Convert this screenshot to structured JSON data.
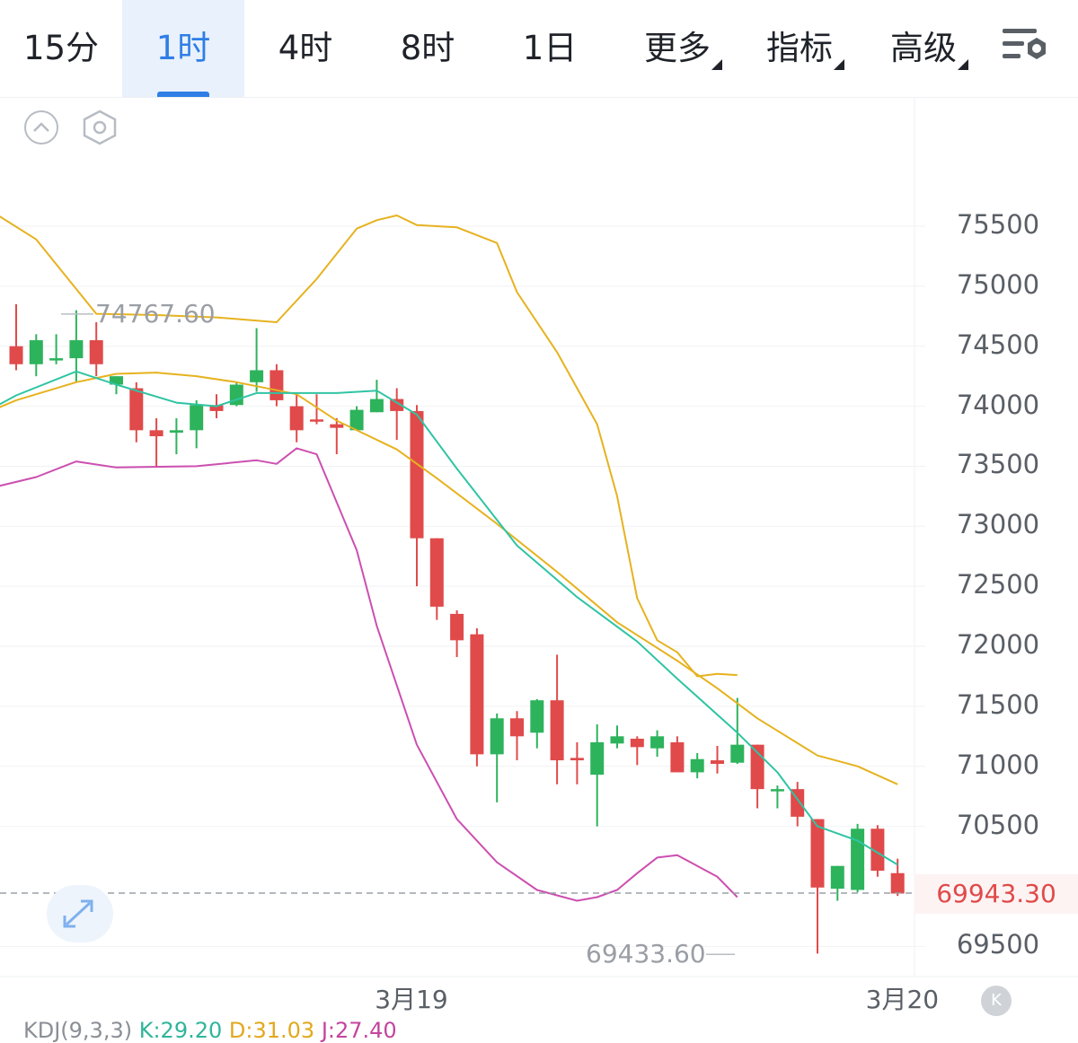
{
  "tabs": [
    {
      "label": "15分",
      "active": false,
      "dropdown": false
    },
    {
      "label": "1时",
      "active": true,
      "dropdown": false
    },
    {
      "label": "4时",
      "active": false,
      "dropdown": false
    },
    {
      "label": "8时",
      "active": false,
      "dropdown": false
    },
    {
      "label": "1日",
      "active": false,
      "dropdown": false
    },
    {
      "label": "更多",
      "active": false,
      "dropdown": true
    },
    {
      "label": "指标",
      "active": false,
      "dropdown": true
    },
    {
      "label": "高级",
      "active": false,
      "dropdown": true
    }
  ],
  "icons": {
    "settings": "chart-settings-icon",
    "collapse": "chevron-up-icon",
    "indicator": "hexagon-settings-icon",
    "expand": "expand-arrows-icon",
    "back": "back-to-latest-icon"
  },
  "colors": {
    "accent": "#2f7ee6",
    "up": "#2db35c",
    "down": "#e04a4a",
    "ma_fast": "#2fc4a3",
    "ma_slow": "#e6b21f",
    "boll_upper": "#e6b21f",
    "boll_lower": "#cc4fb0"
  },
  "back_label": "K",
  "kdj": {
    "title": "KDJ(9,3,3)",
    "k": "K:29.20",
    "d": "D:31.03",
    "j": "J:27.40"
  },
  "chart_data": {
    "type": "candlestick",
    "y_ticks": [
      "75500",
      "75000",
      "74500",
      "74000",
      "73500",
      "73000",
      "72500",
      "72000",
      "71500",
      "71000",
      "70500",
      "69500"
    ],
    "y_range": [
      69400,
      76200
    ],
    "x_ticks": [
      {
        "label": "3月19",
        "index": 19.7
      },
      {
        "label": "3月20",
        "index": 44.2
      }
    ],
    "current_price": 69943.3,
    "current_price_label": "69943.30",
    "max_label": "74767.60",
    "min_label": "69433.60",
    "candles": [
      [
        74500,
        74350,
        74850,
        74300
      ],
      [
        74350,
        74550,
        74600,
        74250
      ],
      [
        74400,
        74400,
        74600,
        74350
      ],
      [
        74400,
        74550,
        74800,
        74200
      ],
      [
        74550,
        74350,
        74700,
        74250
      ],
      [
        74180,
        74250,
        74250,
        74100
      ],
      [
        74150,
        73800,
        74200,
        73700
      ],
      [
        73800,
        73750,
        73900,
        73500
      ],
      [
        73780,
        73800,
        73900,
        73600
      ],
      [
        73800,
        74010,
        74050,
        73650
      ],
      [
        74010,
        73960,
        74100,
        73900
      ],
      [
        74010,
        74180,
        74200,
        74000
      ],
      [
        74200,
        74300,
        74650,
        74120
      ],
      [
        74300,
        74050,
        74350,
        74000
      ],
      [
        74000,
        73800,
        74100,
        73700
      ],
      [
        73890,
        73880,
        74100,
        73850
      ],
      [
        73850,
        73820,
        73900,
        73600
      ],
      [
        73800,
        73970,
        74000,
        73800
      ],
      [
        73950,
        74060,
        74220,
        73950
      ],
      [
        74060,
        73960,
        74150,
        73720
      ],
      [
        73960,
        72900,
        74010,
        72500
      ],
      [
        72900,
        72330,
        72900,
        72220
      ],
      [
        72270,
        72050,
        72300,
        71910
      ],
      [
        72100,
        71100,
        72150,
        71000
      ],
      [
        71100,
        71400,
        71440,
        70700
      ],
      [
        71400,
        71250,
        71460,
        71050
      ],
      [
        71280,
        71550,
        71560,
        71150
      ],
      [
        71550,
        71050,
        71930,
        70850
      ],
      [
        71070,
        71050,
        71200,
        70850
      ],
      [
        70930,
        71200,
        71350,
        70500
      ],
      [
        71190,
        71250,
        71340,
        71150
      ],
      [
        71230,
        71160,
        71250,
        71010
      ],
      [
        71150,
        71250,
        71300,
        71080
      ],
      [
        71200,
        70950,
        71250,
        70950
      ],
      [
        70950,
        71060,
        71110,
        70900
      ],
      [
        71050,
        71020,
        71170,
        70940
      ],
      [
        71030,
        71180,
        71570,
        71020
      ],
      [
        71180,
        70810,
        71180,
        70650
      ],
      [
        70810,
        70810,
        70840,
        70650
      ],
      [
        70810,
        70580,
        70870,
        70500
      ],
      [
        70560,
        69990,
        70560,
        69440
      ],
      [
        69980,
        70170,
        70170,
        69880
      ],
      [
        69970,
        70480,
        70520,
        69950
      ],
      [
        70480,
        70130,
        70510,
        70080
      ],
      [
        70110,
        69940,
        70230,
        69920
      ]
    ],
    "ma_fast": [
      [
        -1,
        74000
      ],
      [
        0,
        74090
      ],
      [
        3,
        74290
      ],
      [
        5,
        74180
      ],
      [
        8,
        74030
      ],
      [
        10,
        74000
      ],
      [
        12,
        74110
      ],
      [
        14,
        74110
      ],
      [
        16,
        74110
      ],
      [
        18,
        74130
      ],
      [
        20,
        73930
      ],
      [
        22,
        73480
      ],
      [
        25,
        72840
      ],
      [
        28,
        72410
      ],
      [
        31,
        72040
      ],
      [
        33,
        71730
      ],
      [
        36,
        71280
      ],
      [
        38,
        70950
      ],
      [
        40,
        70500
      ],
      [
        42,
        70380
      ],
      [
        44,
        70180
      ]
    ],
    "ma_slow": [
      [
        -1,
        73980
      ],
      [
        0,
        74050
      ],
      [
        3,
        74200
      ],
      [
        5,
        74270
      ],
      [
        7,
        74280
      ],
      [
        9,
        74250
      ],
      [
        11,
        74200
      ],
      [
        14,
        74100
      ],
      [
        16,
        73880
      ],
      [
        19,
        73640
      ],
      [
        21,
        73400
      ],
      [
        24,
        73020
      ],
      [
        27,
        72620
      ],
      [
        30,
        72200
      ],
      [
        33,
        71880
      ],
      [
        35,
        71650
      ],
      [
        37,
        71400
      ],
      [
        40,
        71090
      ],
      [
        42,
        71000
      ],
      [
        44,
        70850
      ]
    ],
    "boll_upper": [
      [
        -1,
        75600
      ],
      [
        1,
        75390
      ],
      [
        4,
        74770
      ],
      [
        7,
        74760
      ],
      [
        10,
        74740
      ],
      [
        13,
        74700
      ],
      [
        15,
        75060
      ],
      [
        17,
        75480
      ],
      [
        18,
        75550
      ],
      [
        19,
        75590
      ],
      [
        20,
        75510
      ],
      [
        22,
        75490
      ],
      [
        24,
        75360
      ],
      [
        25,
        74950
      ],
      [
        27,
        74450
      ],
      [
        29,
        73850
      ],
      [
        30,
        73250
      ],
      [
        31,
        72400
      ],
      [
        32,
        72050
      ],
      [
        33,
        71950
      ],
      [
        34,
        71750
      ],
      [
        35,
        71770
      ],
      [
        36,
        71760
      ]
    ],
    "boll_lower": [
      [
        -1,
        73330
      ],
      [
        1,
        73410
      ],
      [
        3,
        73540
      ],
      [
        5,
        73490
      ],
      [
        9,
        73500
      ],
      [
        12,
        73550
      ],
      [
        13,
        73520
      ],
      [
        14,
        73650
      ],
      [
        15,
        73600
      ],
      [
        17,
        72800
      ],
      [
        18,
        72170
      ],
      [
        20,
        71180
      ],
      [
        22,
        70560
      ],
      [
        24,
        70200
      ],
      [
        26,
        69970
      ],
      [
        28,
        69880
      ],
      [
        29,
        69910
      ],
      [
        30,
        69970
      ],
      [
        31,
        70110
      ],
      [
        32,
        70240
      ],
      [
        33,
        70260
      ],
      [
        34,
        70170
      ],
      [
        35,
        70080
      ],
      [
        36,
        69910
      ]
    ]
  }
}
